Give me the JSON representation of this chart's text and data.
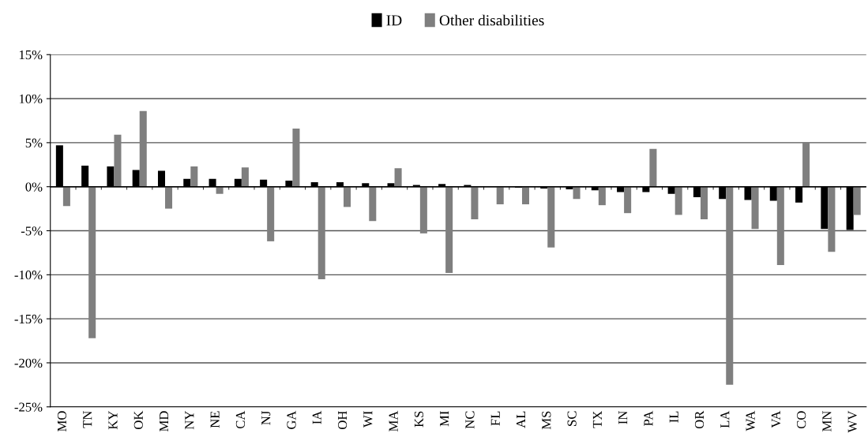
{
  "chart_data": {
    "type": "bar",
    "categories": [
      "MO",
      "TN",
      "KY",
      "OK",
      "MD",
      "NY",
      "NE",
      "CA",
      "NJ",
      "GA",
      "IA",
      "OH",
      "WI",
      "MA",
      "KS",
      "MI",
      "NC",
      "FL",
      "AL",
      "MS",
      "SC",
      "TX",
      "IN",
      "PA",
      "IL",
      "OR",
      "LA",
      "WA",
      "VA",
      "CO",
      "MN",
      "WV"
    ],
    "series": [
      {
        "name": "ID",
        "color": "#000000",
        "values": [
          4.7,
          2.4,
          2.3,
          1.9,
          1.8,
          0.9,
          0.9,
          0.9,
          0.8,
          0.7,
          0.5,
          0.5,
          0.4,
          0.4,
          0.2,
          0.3,
          0.2,
          0.0,
          -0.1,
          -0.2,
          -0.3,
          -0.4,
          -0.6,
          -0.6,
          -0.8,
          -1.2,
          -1.4,
          -1.5,
          -1.6,
          -1.8,
          -4.8,
          -4.9
        ]
      },
      {
        "name": "Other disabilities",
        "color": "#7f7f7f",
        "values": [
          -2.2,
          -17.2,
          5.9,
          8.6,
          -2.5,
          2.3,
          -0.8,
          2.2,
          -6.2,
          6.6,
          -10.5,
          -2.3,
          -3.9,
          2.1,
          -5.3,
          -9.8,
          -3.7,
          -2.0,
          -2.0,
          -6.9,
          -1.4,
          -2.1,
          -3.0,
          4.3,
          -3.2,
          -3.7,
          -22.5,
          -4.8,
          -8.9,
          5.0,
          -7.4,
          -3.2
        ]
      }
    ],
    "ylim": [
      -25,
      15
    ],
    "yticks": [
      {
        "value": -25,
        "label": "-25%"
      },
      {
        "value": -20,
        "label": "-20%"
      },
      {
        "value": -15,
        "label": "-15%"
      },
      {
        "value": -10,
        "label": "-10%"
      },
      {
        "value": -5,
        "label": "-5%"
      },
      {
        "value": 0,
        "label": "0%"
      },
      {
        "value": 5,
        "label": "5%"
      },
      {
        "value": 10,
        "label": "10%"
      },
      {
        "value": 15,
        "label": "15%"
      }
    ],
    "grid": "y",
    "legend": "top"
  }
}
